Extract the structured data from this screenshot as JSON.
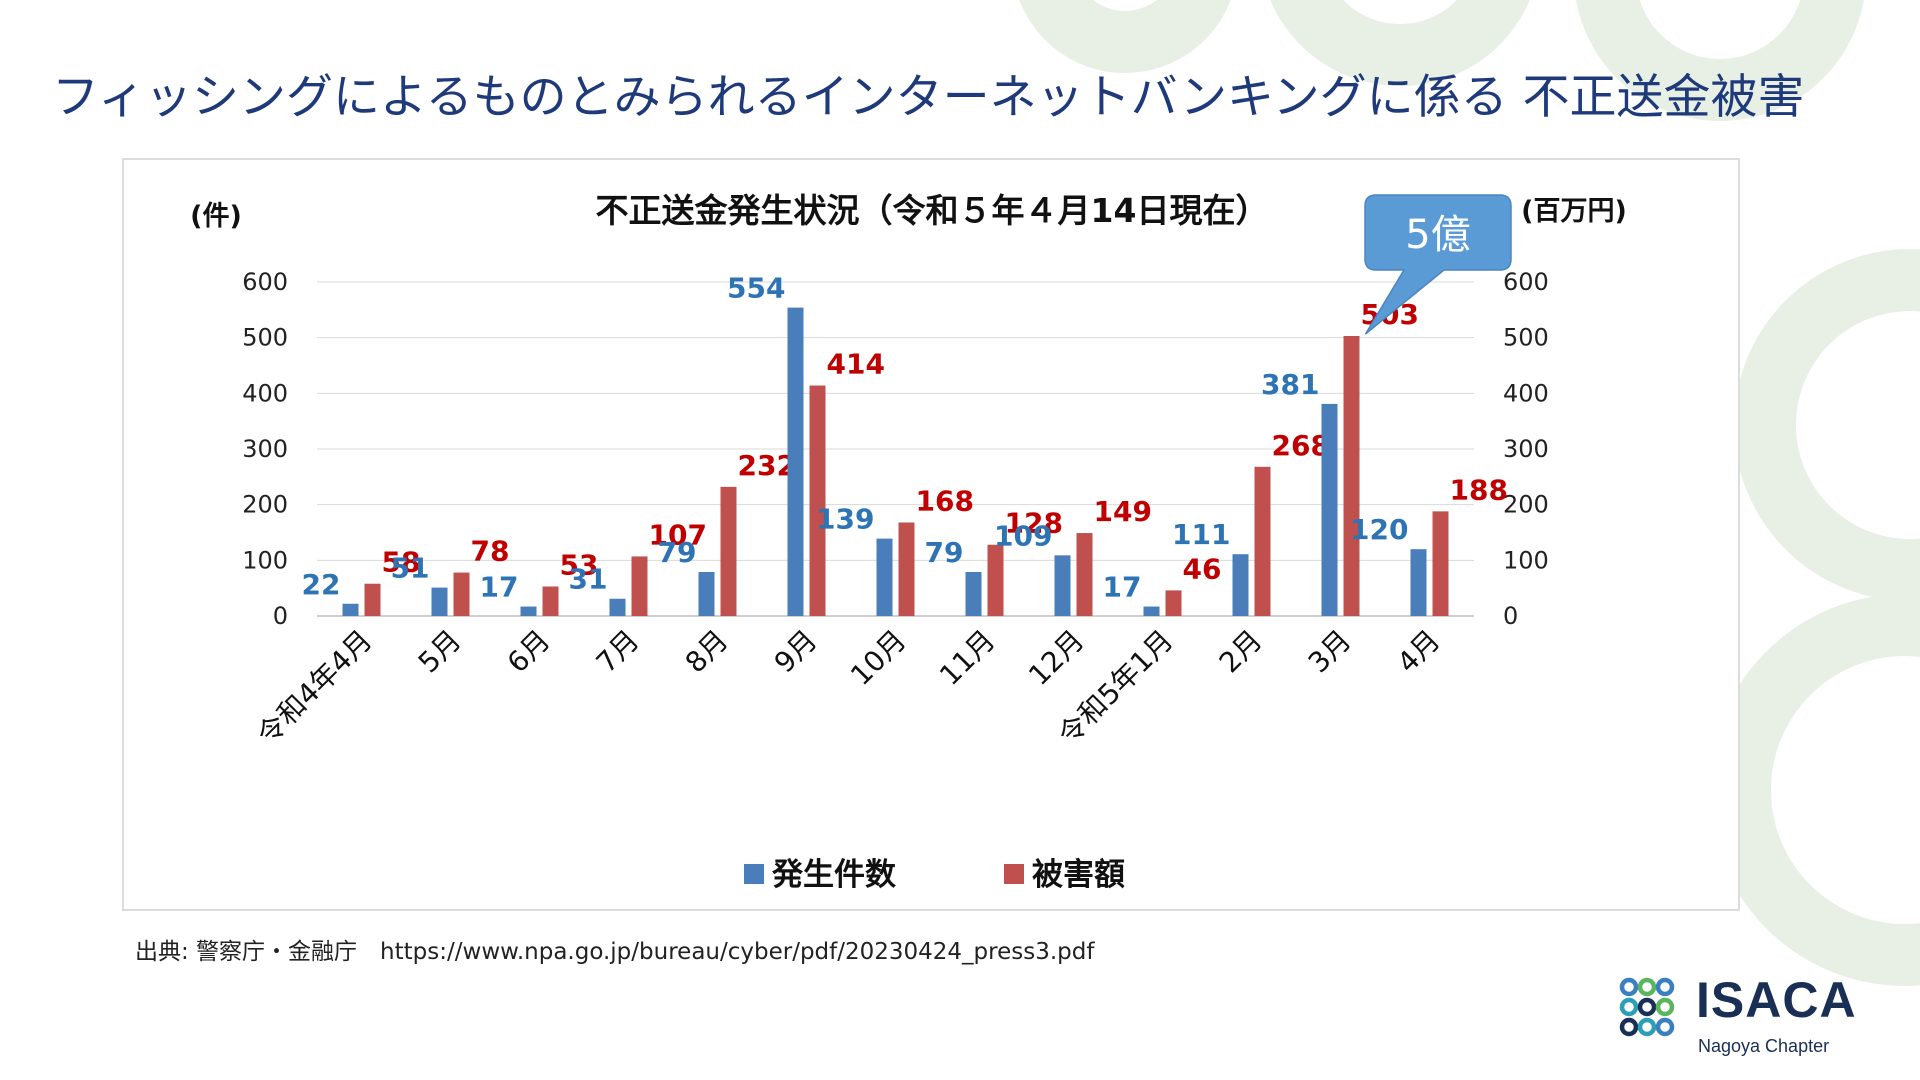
{
  "slide": {
    "title": "フィッシングによるものとみられるインターネットバンキングに係る 不正送金被害",
    "source": "出典:  警察庁・金融庁　https://www.npa.go.jp/bureau/cyber/pdf/20230424_press3.pdf",
    "callout_label": "5億",
    "colors": {
      "title": "#1f3a7a",
      "series_count": "#4a7ebb",
      "series_amount": "#c0504d",
      "label_count": "#2e74b5",
      "label_amount": "#c00000",
      "callout": "#5b9bd5",
      "decor": "#e8f0e6"
    }
  },
  "logo": {
    "name": "ISACA",
    "chapter": "Nagoya Chapter",
    "icon": "isaca-rings-icon"
  },
  "chart_data": {
    "type": "bar",
    "title": "不正送金発生状況（令和５年４月14日現在）",
    "ylabel": "(件)",
    "ylabel_right": "(百万円)",
    "ylim": [
      0,
      600
    ],
    "yticks": [
      0,
      100,
      200,
      300,
      400,
      500,
      600
    ],
    "grid": true,
    "legend_position": "bottom",
    "categories": [
      "令和4年4月",
      "5月",
      "6月",
      "7月",
      "8月",
      "9月",
      "10月",
      "11月",
      "12月",
      "令和5年1月",
      "2月",
      "3月",
      "4月"
    ],
    "series": [
      {
        "name": "発生件数",
        "axis": "left",
        "values": [
          22,
          51,
          17,
          31,
          79,
          554,
          139,
          79,
          109,
          17,
          111,
          381,
          120
        ]
      },
      {
        "name": "被害額",
        "axis": "right",
        "values": [
          58,
          78,
          53,
          107,
          232,
          414,
          168,
          128,
          149,
          46,
          268,
          503,
          188
        ]
      }
    ]
  }
}
